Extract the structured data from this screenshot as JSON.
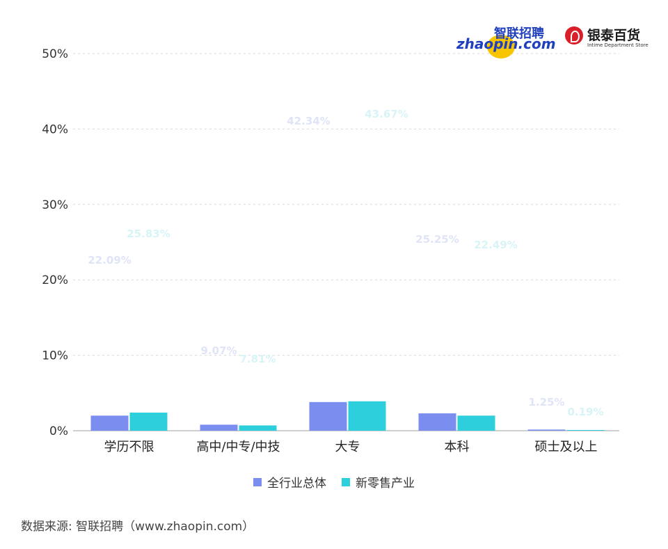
{
  "source": "数据来源: 智联招聘（www.zhaopin.com）",
  "logos": {
    "zhaopin_cn": "智联招聘",
    "zhaopin_en": "zhaopin.com",
    "intime_cn": "银泰百货",
    "intime_en": "Intime Department Store"
  },
  "colors": {
    "series1": "#7b8ef0",
    "series2": "#2dcfdc",
    "label1": "#dfe4f7",
    "label2": "#d8f4f6"
  },
  "chart_data": {
    "type": "bar",
    "categories": [
      "学历不限",
      "高中/中专/中技",
      "大专",
      "本科",
      "硕士及以上"
    ],
    "series": [
      {
        "name": "全行业总体",
        "values": [
          2.0,
          0.8,
          3.8,
          2.3,
          0.15
        ],
        "labels": [
          "22.09%",
          "9.07%",
          "42.34%",
          "25.25%",
          "1.25%"
        ]
      },
      {
        "name": "新零售产业",
        "values": [
          2.4,
          0.7,
          3.9,
          2.0,
          0.02
        ],
        "labels": [
          "25.83%",
          "7.81%",
          "43.67%",
          "22.49%",
          "0.19%"
        ]
      }
    ],
    "yticks": [
      "0%",
      "10%",
      "20%",
      "30%",
      "40%",
      "50%"
    ],
    "ylim": [
      0,
      50
    ],
    "grid": true,
    "legend": "bottom"
  }
}
